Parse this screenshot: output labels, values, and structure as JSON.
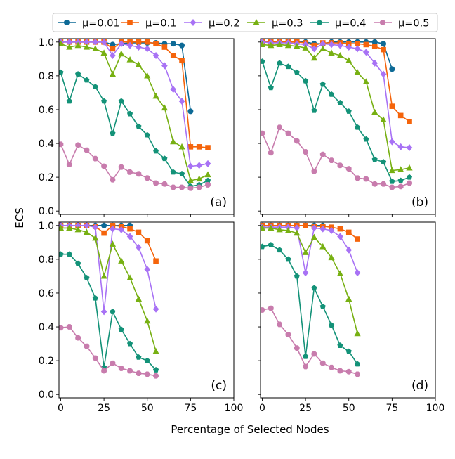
{
  "figure": {
    "ylabel": "ECS",
    "xlabel": "Percentage of Selected Nodes"
  },
  "legend": {
    "placement": "top-center",
    "entries": [
      {
        "name": "μ=0.01",
        "color": "#0d6a96",
        "marker": "circle"
      },
      {
        "name": "μ=0.1",
        "color": "#f5640b",
        "marker": "square"
      },
      {
        "name": "μ=0.2",
        "color": "#a872f5",
        "marker": "diamond"
      },
      {
        "name": "μ=0.3",
        "color": "#77b012",
        "marker": "triangle"
      },
      {
        "name": "μ=0.4",
        "color": "#139278",
        "marker": "pentagon"
      },
      {
        "name": "μ=0.5",
        "color": "#c87cad",
        "marker": "octagon"
      }
    ]
  },
  "chart_data": [
    {
      "type": "line",
      "panel_label": "(a)",
      "xlim": [
        -1,
        100
      ],
      "ylim": [
        -0.02,
        1.02
      ],
      "xticks": [
        0,
        25,
        50,
        75,
        100
      ],
      "yticks": [
        0.0,
        0.2,
        0.4,
        0.6,
        0.8,
        1.0
      ],
      "grid": false,
      "series": [
        {
          "name": "μ=0.01",
          "x": [
            0,
            5,
            10,
            15,
            20,
            25,
            30,
            35,
            40,
            45,
            50,
            55,
            60,
            65,
            70,
            75
          ],
          "y": [
            1.0,
            1.0,
            1.0,
            1.0,
            1.0,
            1.0,
            0.985,
            0.99,
            0.995,
            0.995,
            0.995,
            0.995,
            0.99,
            0.99,
            0.98,
            0.59
          ]
        },
        {
          "name": "μ=0.1",
          "x": [
            0,
            5,
            10,
            15,
            20,
            25,
            30,
            35,
            40,
            45,
            50,
            55,
            60,
            65,
            70,
            75,
            80,
            85
          ],
          "y": [
            1.0,
            1.0,
            1.0,
            1.0,
            1.0,
            1.0,
            0.96,
            1.0,
            1.0,
            1.0,
            1.0,
            0.99,
            0.97,
            0.92,
            0.89,
            0.38,
            0.38,
            0.375
          ]
        },
        {
          "name": "μ=0.2",
          "x": [
            0,
            5,
            10,
            15,
            20,
            25,
            30,
            35,
            40,
            45,
            50,
            55,
            60,
            65,
            70,
            75,
            80,
            85
          ],
          "y": [
            1.0,
            1.0,
            1.0,
            1.0,
            1.0,
            1.0,
            0.92,
            0.99,
            0.98,
            0.97,
            0.96,
            0.92,
            0.86,
            0.72,
            0.65,
            0.265,
            0.27,
            0.28
          ]
        },
        {
          "name": "μ=0.3",
          "x": [
            0,
            5,
            10,
            15,
            20,
            25,
            30,
            35,
            40,
            45,
            50,
            55,
            60,
            65,
            70,
            75,
            80,
            85
          ],
          "y": [
            0.99,
            0.97,
            0.98,
            0.97,
            0.96,
            0.935,
            0.81,
            0.93,
            0.895,
            0.865,
            0.8,
            0.68,
            0.61,
            0.41,
            0.38,
            0.18,
            0.19,
            0.215
          ]
        },
        {
          "name": "μ=0.4",
          "x": [
            0,
            5,
            10,
            15,
            20,
            25,
            30,
            35,
            40,
            45,
            50,
            55,
            60,
            65,
            70,
            75,
            80,
            85
          ],
          "y": [
            0.82,
            0.65,
            0.81,
            0.775,
            0.735,
            0.65,
            0.46,
            0.65,
            0.575,
            0.5,
            0.45,
            0.355,
            0.31,
            0.23,
            0.22,
            0.145,
            0.155,
            0.18
          ]
        },
        {
          "name": "μ=0.5",
          "x": [
            0,
            5,
            10,
            15,
            20,
            25,
            30,
            35,
            40,
            45,
            50,
            55,
            60,
            65,
            70,
            75,
            80,
            85
          ],
          "y": [
            0.395,
            0.275,
            0.39,
            0.36,
            0.31,
            0.265,
            0.185,
            0.26,
            0.23,
            0.22,
            0.195,
            0.165,
            0.16,
            0.14,
            0.14,
            0.135,
            0.14,
            0.155
          ]
        }
      ]
    },
    {
      "type": "line",
      "panel_label": "(b)",
      "xlim": [
        -1,
        100
      ],
      "ylim": [
        -0.02,
        1.02
      ],
      "xticks": [
        0,
        25,
        50,
        75,
        100
      ],
      "yticks": [
        0.0,
        0.2,
        0.4,
        0.6,
        0.8,
        1.0
      ],
      "grid": false,
      "series": [
        {
          "name": "μ=0.01",
          "x": [
            0,
            5,
            10,
            15,
            20,
            25,
            30,
            35,
            40,
            45,
            50,
            55,
            60,
            65,
            70,
            75
          ],
          "y": [
            1.0,
            1.0,
            1.0,
            1.0,
            1.0,
            1.0,
            0.99,
            0.99,
            1.0,
            1.0,
            1.0,
            1.0,
            1.0,
            1.0,
            0.99,
            0.84
          ]
        },
        {
          "name": "μ=0.1",
          "x": [
            0,
            5,
            10,
            15,
            20,
            25,
            30,
            35,
            40,
            45,
            50,
            55,
            60,
            65,
            70,
            75,
            80,
            85
          ],
          "y": [
            1.0,
            1.0,
            1.0,
            1.0,
            1.0,
            0.995,
            0.98,
            0.995,
            0.995,
            0.995,
            0.99,
            0.99,
            0.985,
            0.975,
            0.955,
            0.62,
            0.565,
            0.53
          ]
        },
        {
          "name": "μ=0.2",
          "x": [
            0,
            5,
            10,
            15,
            20,
            25,
            30,
            35,
            40,
            45,
            50,
            55,
            60,
            65,
            70,
            75,
            80,
            85
          ],
          "y": [
            1.0,
            0.995,
            0.995,
            0.995,
            0.99,
            0.985,
            0.96,
            0.99,
            0.985,
            0.98,
            0.97,
            0.96,
            0.94,
            0.875,
            0.81,
            0.41,
            0.38,
            0.375
          ]
        },
        {
          "name": "μ=0.3",
          "x": [
            0,
            5,
            10,
            15,
            20,
            25,
            30,
            35,
            40,
            45,
            50,
            55,
            60,
            65,
            70,
            75,
            80,
            85
          ],
          "y": [
            0.985,
            0.98,
            0.985,
            0.98,
            0.975,
            0.965,
            0.905,
            0.96,
            0.935,
            0.92,
            0.89,
            0.82,
            0.765,
            0.585,
            0.54,
            0.24,
            0.245,
            0.255
          ]
        },
        {
          "name": "μ=0.4",
          "x": [
            0,
            5,
            10,
            15,
            20,
            25,
            30,
            35,
            40,
            45,
            50,
            55,
            60,
            65,
            70,
            75,
            80,
            85
          ],
          "y": [
            0.885,
            0.73,
            0.875,
            0.855,
            0.82,
            0.77,
            0.595,
            0.75,
            0.69,
            0.64,
            0.59,
            0.495,
            0.425,
            0.305,
            0.29,
            0.175,
            0.18,
            0.2
          ]
        },
        {
          "name": "μ=0.5",
          "x": [
            0,
            5,
            10,
            15,
            20,
            25,
            30,
            35,
            40,
            45,
            50,
            55,
            60,
            65,
            70,
            75,
            80,
            85
          ],
          "y": [
            0.46,
            0.345,
            0.495,
            0.46,
            0.415,
            0.35,
            0.235,
            0.335,
            0.3,
            0.27,
            0.25,
            0.195,
            0.19,
            0.16,
            0.16,
            0.14,
            0.145,
            0.165
          ]
        }
      ]
    },
    {
      "type": "line",
      "panel_label": "(c)",
      "xlim": [
        -1,
        100
      ],
      "ylim": [
        -0.02,
        1.02
      ],
      "xticks": [
        0,
        25,
        50,
        75,
        100
      ],
      "yticks": [
        0.0,
        0.2,
        0.4,
        0.6,
        0.8,
        1.0
      ],
      "grid": false,
      "series": [
        {
          "name": "μ=0.01",
          "x": [
            0,
            5,
            10,
            15,
            20,
            25,
            30,
            35,
            40
          ],
          "y": [
            1.0,
            1.0,
            1.0,
            1.0,
            1.0,
            1.0,
            1.0,
            1.0,
            1.0
          ]
        },
        {
          "name": "μ=0.1",
          "x": [
            0,
            5,
            10,
            15,
            20,
            25,
            30,
            35,
            40,
            45,
            50,
            55
          ],
          "y": [
            1.0,
            1.0,
            1.0,
            1.0,
            0.995,
            0.955,
            1.0,
            0.995,
            0.98,
            0.96,
            0.91,
            0.79
          ]
        },
        {
          "name": "μ=0.2",
          "x": [
            0,
            5,
            10,
            15,
            20,
            25,
            30,
            35,
            40,
            45,
            50,
            55
          ],
          "y": [
            1.0,
            1.0,
            1.0,
            1.0,
            0.99,
            0.49,
            0.98,
            0.975,
            0.935,
            0.87,
            0.74,
            0.505
          ]
        },
        {
          "name": "μ=0.3",
          "x": [
            0,
            5,
            10,
            15,
            20,
            25,
            30,
            35,
            40,
            45,
            50,
            55
          ],
          "y": [
            0.985,
            0.985,
            0.975,
            0.96,
            0.925,
            0.7,
            0.89,
            0.79,
            0.69,
            0.565,
            0.435,
            0.255
          ]
        },
        {
          "name": "μ=0.4",
          "x": [
            0,
            5,
            10,
            15,
            20,
            25,
            30,
            35,
            40,
            45,
            50,
            55
          ],
          "y": [
            0.83,
            0.83,
            0.775,
            0.69,
            0.57,
            0.16,
            0.49,
            0.385,
            0.3,
            0.22,
            0.2,
            0.145
          ]
        },
        {
          "name": "μ=0.5",
          "x": [
            0,
            5,
            10,
            15,
            20,
            25,
            30,
            35,
            40,
            45,
            50,
            55
          ],
          "y": [
            0.395,
            0.4,
            0.335,
            0.285,
            0.215,
            0.14,
            0.185,
            0.155,
            0.14,
            0.125,
            0.12,
            0.11
          ]
        }
      ]
    },
    {
      "type": "line",
      "panel_label": "(d)",
      "xlim": [
        -1,
        100
      ],
      "ylim": [
        -0.02,
        1.02
      ],
      "xticks": [
        0,
        25,
        50,
        75,
        100
      ],
      "yticks": [
        0.0,
        0.2,
        0.4,
        0.6,
        0.8,
        1.0
      ],
      "grid": false,
      "series": [
        {
          "name": "μ=0.01",
          "x": [
            0,
            5,
            10,
            15,
            20,
            25,
            30,
            35
          ],
          "y": [
            1.0,
            1.0,
            1.0,
            1.0,
            1.0,
            1.0,
            1.0,
            1.0
          ]
        },
        {
          "name": "μ=0.1",
          "x": [
            0,
            5,
            10,
            15,
            20,
            25,
            30,
            35,
            40,
            45,
            50,
            55
          ],
          "y": [
            1.0,
            1.0,
            1.0,
            1.0,
            1.0,
            1.0,
            0.995,
            0.995,
            0.99,
            0.98,
            0.96,
            0.92
          ]
        },
        {
          "name": "μ=0.2",
          "x": [
            0,
            5,
            10,
            15,
            20,
            25,
            30,
            35,
            40,
            45,
            50,
            55
          ],
          "y": [
            0.99,
            0.99,
            0.99,
            0.99,
            0.985,
            0.72,
            0.985,
            0.98,
            0.97,
            0.935,
            0.855,
            0.72
          ]
        },
        {
          "name": "μ=0.3",
          "x": [
            0,
            5,
            10,
            15,
            20,
            25,
            30,
            35,
            40,
            45,
            50,
            55
          ],
          "y": [
            0.985,
            0.985,
            0.975,
            0.97,
            0.955,
            0.84,
            0.93,
            0.875,
            0.81,
            0.715,
            0.565,
            0.36
          ]
        },
        {
          "name": "μ=0.4",
          "x": [
            0,
            5,
            10,
            15,
            20,
            25,
            30,
            35,
            40,
            45,
            50,
            55
          ],
          "y": [
            0.875,
            0.885,
            0.855,
            0.8,
            0.7,
            0.225,
            0.63,
            0.52,
            0.41,
            0.29,
            0.255,
            0.18
          ]
        },
        {
          "name": "μ=0.5",
          "x": [
            0,
            5,
            10,
            15,
            20,
            25,
            30,
            35,
            40,
            45,
            50,
            55
          ],
          "y": [
            0.5,
            0.51,
            0.415,
            0.355,
            0.275,
            0.165,
            0.24,
            0.185,
            0.16,
            0.14,
            0.135,
            0.12
          ]
        }
      ]
    }
  ]
}
